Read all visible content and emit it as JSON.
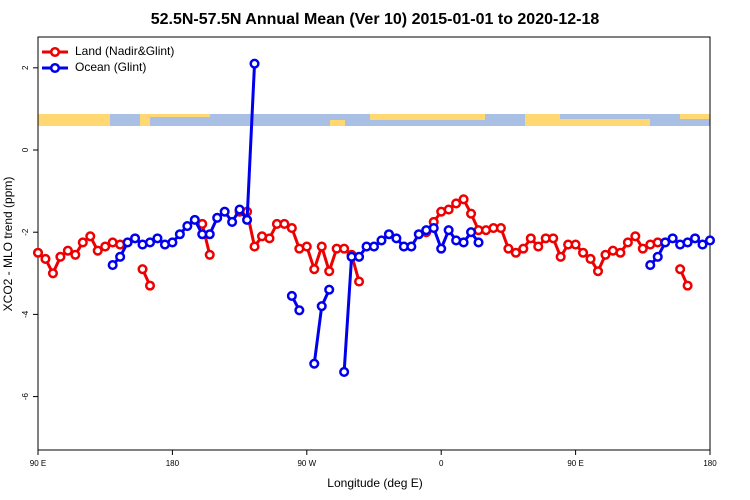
{
  "chart_data": {
    "type": "line",
    "title": "52.5N-57.5N Annual Mean (Ver 10)   2015-01-01 to 2020-12-18",
    "x_label": "Longitude (deg E)",
    "y_label": "XCO2 - MLO trend (ppm)",
    "x": [
      90,
      95,
      100,
      105,
      110,
      115,
      120,
      125,
      130,
      135,
      140,
      145,
      150,
      155,
      160,
      165,
      170,
      175,
      180,
      185,
      190,
      195,
      200,
      205,
      210,
      215,
      220,
      225,
      230,
      235,
      240,
      245,
      250,
      255,
      260,
      265,
      270,
      275,
      280,
      285,
      290,
      295,
      300,
      305,
      310,
      315,
      320,
      325,
      330,
      335,
      340,
      345,
      350,
      355,
      360,
      365,
      370,
      375,
      380,
      385,
      390,
      395,
      400,
      405,
      410,
      415,
      420,
      425,
      430,
      435,
      440,
      445,
      450,
      455,
      460,
      465,
      470,
      475,
      480,
      485,
      490,
      495,
      500,
      505,
      510,
      515,
      520,
      525,
      530,
      535,
      540
    ],
    "series": [
      {
        "name": "Land (Nadir&Glint)",
        "color": "#ee0000",
        "values": [
          -2.5,
          -2.65,
          -3.0,
          -2.6,
          -2.45,
          -2.55,
          -2.25,
          -2.1,
          -2.45,
          -2.35,
          -2.25,
          -2.3,
          null,
          null,
          -2.9,
          -3.3,
          null,
          null,
          null,
          null,
          null,
          null,
          -1.8,
          -2.55,
          null,
          null,
          null,
          -1.5,
          -1.5,
          -2.35,
          -2.1,
          -2.15,
          -1.8,
          -1.8,
          -1.9,
          -2.4,
          -2.35,
          -2.9,
          -2.35,
          -2.95,
          -2.4,
          -2.4,
          -2.55,
          -3.2,
          null,
          null,
          null,
          null,
          null,
          null,
          null,
          null,
          -2.0,
          -1.75,
          -1.5,
          -1.45,
          -1.3,
          -1.2,
          -1.55,
          -1.95,
          -1.95,
          -1.9,
          -1.9,
          -2.4,
          -2.5,
          -2.4,
          -2.15,
          -2.35,
          -2.15,
          -2.15,
          -2.6,
          -2.3,
          -2.3,
          -2.5,
          -2.65,
          -2.95,
          -2.55,
          -2.45,
          -2.5,
          -2.25,
          -2.1,
          -2.4,
          -2.3,
          -2.25,
          null,
          null,
          -2.9,
          -3.3,
          null,
          null,
          null
        ]
      },
      {
        "name": "Ocean (Glint)",
        "color": "#0000ee",
        "values": [
          null,
          null,
          null,
          null,
          null,
          null,
          null,
          null,
          null,
          null,
          -2.8,
          -2.6,
          -2.25,
          -2.15,
          -2.3,
          -2.25,
          -2.15,
          -2.3,
          -2.25,
          -2.05,
          -1.85,
          -1.7,
          -2.05,
          -2.05,
          -1.65,
          -1.5,
          -1.75,
          -1.45,
          -1.7,
          2.1,
          null,
          null,
          null,
          null,
          -3.55,
          -3.9,
          null,
          -5.2,
          -3.8,
          -3.4,
          null,
          -5.4,
          -2.6,
          -2.6,
          -2.35,
          -2.35,
          -2.2,
          -2.05,
          -2.15,
          -2.35,
          -2.35,
          -2.05,
          -1.95,
          -1.9,
          -2.4,
          -1.95,
          -2.2,
          -2.25,
          -2.0,
          -2.25,
          null,
          null,
          null,
          null,
          null,
          null,
          null,
          null,
          null,
          null,
          null,
          null,
          null,
          null,
          null,
          null,
          null,
          null,
          null,
          null,
          null,
          null,
          -2.8,
          -2.6,
          -2.25,
          -2.15,
          -2.3,
          -2.25,
          -2.15,
          -2.3,
          -2.2
        ]
      }
    ],
    "xlim": [
      90,
      540
    ],
    "xticks": [
      {
        "value": 90,
        "label": "90 E"
      },
      180,
      {
        "value": 270,
        "label": "90 W"
      },
      {
        "value": 360,
        "label": "0"
      },
      {
        "value": 450,
        "label": "90 E"
      },
      {
        "value": 540,
        "label": "180"
      }
    ],
    "ylim": [
      -7.3,
      2.75
    ],
    "yticks": [
      -6,
      -4,
      -2,
      0,
      2
    ],
    "legend": "top-left"
  }
}
